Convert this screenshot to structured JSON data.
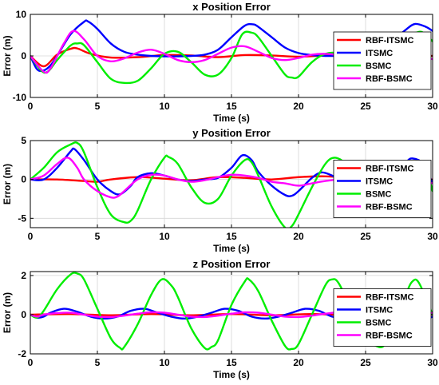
{
  "figure": {
    "background": "#ffffff",
    "grid": true,
    "legend_position": "right",
    "series_colors": {
      "RBF-ITSMC": "#ff0000",
      "ITSMC": "#0000ff",
      "BSMC": "#00ee00",
      "RBF-BSMC": "#ff00ff"
    }
  },
  "chart_data": [
    {
      "type": "line",
      "title": "x Position Error",
      "xlabel": "Time (s)",
      "ylabel": "Error (m)",
      "xlim": [
        0,
        30
      ],
      "ylim": [
        -10,
        10
      ],
      "xticks": [
        0,
        5,
        10,
        15,
        20,
        25,
        30
      ],
      "yticks": [
        -10,
        0,
        10
      ],
      "grid": true,
      "legend": {
        "position": "right"
      },
      "series": [
        {
          "name": "RBF-ITSMC",
          "color": "#ff0000",
          "x": [
            0,
            1,
            2,
            3,
            3.5,
            4.5,
            6,
            8,
            10,
            12,
            14,
            16,
            18,
            20,
            22,
            24,
            26,
            28,
            30
          ],
          "y": [
            0,
            -2.5,
            0.3,
            1.7,
            1.8,
            0.5,
            -0.4,
            -0.3,
            0.2,
            0.1,
            -0.3,
            0.2,
            0.1,
            -0.2,
            0.1,
            0.1,
            -0.1,
            0.1,
            0
          ]
        },
        {
          "name": "ITSMC",
          "color": "#0000ff",
          "x": [
            0,
            0.5,
            1,
            1.5,
            2,
            3,
            4,
            4.3,
            5,
            6,
            7,
            8,
            9,
            10,
            11,
            12,
            13,
            14,
            15,
            16,
            16.6,
            17,
            18,
            19,
            20,
            21,
            22,
            23,
            24,
            25,
            26,
            27,
            28,
            28.7,
            29.5,
            30
          ],
          "y": [
            0,
            -3.2,
            -3.5,
            -2.3,
            0,
            5.2,
            8.2,
            8.3,
            6.5,
            3.0,
            1.0,
            0.3,
            0,
            -0.1,
            -0.1,
            0,
            0.3,
            1.5,
            4.5,
            7.3,
            7.6,
            7.0,
            4.5,
            2.0,
            0.7,
            0.2,
            0,
            0,
            0,
            0.2,
            1.2,
            3.5,
            6.3,
            7.7,
            7.0,
            6.0
          ]
        },
        {
          "name": "BSMC",
          "color": "#00ee00",
          "x": [
            0,
            0.8,
            1.3,
            2,
            3,
            3.5,
            4,
            5,
            6,
            7,
            8,
            9,
            10,
            11,
            12,
            13,
            14,
            15,
            15.8,
            16.5,
            17,
            18,
            19,
            19.5,
            20,
            21,
            22,
            23,
            24,
            25,
            26,
            27,
            28,
            29,
            29.5,
            30
          ],
          "y": [
            0,
            -3.5,
            -3.8,
            -1.0,
            2.5,
            3.0,
            2.6,
            -1.5,
            -5.5,
            -6.5,
            -6.0,
            -3.0,
            0.5,
            1.0,
            -1.5,
            -4.5,
            -4.5,
            -0.5,
            5.2,
            5.6,
            4.5,
            0,
            -4.5,
            -5.2,
            -5.0,
            -1.5,
            0.5,
            0.5,
            -2.0,
            -5.0,
            -4.5,
            -1.0,
            4.0,
            5.8,
            5.0,
            3.5
          ]
        },
        {
          "name": "RBF-BSMC",
          "color": "#ff00ff",
          "x": [
            0,
            1,
            1.5,
            2.5,
            3.2,
            4,
            5,
            6,
            7,
            8,
            9,
            10,
            11,
            12,
            13,
            14,
            15,
            16,
            17,
            18,
            19,
            20,
            21,
            22,
            23,
            24,
            25,
            26,
            27,
            28,
            29,
            30
          ],
          "y": [
            0,
            -3.8,
            -3.0,
            3.0,
            6.0,
            4.0,
            0,
            -1.3,
            -0.6,
            0.8,
            1.5,
            0.5,
            -1.0,
            -1.5,
            -1.0,
            0.5,
            2.0,
            2.3,
            1.0,
            -0.5,
            -1.0,
            -0.5,
            0.3,
            0.5,
            0.2,
            -0.3,
            -0.3,
            -0.1,
            0.3,
            0.3,
            0,
            -0.8
          ]
        }
      ]
    },
    {
      "type": "line",
      "title": "y Position Error",
      "xlabel": "Time (s)",
      "ylabel": "Error (m)",
      "xlim": [
        0,
        30
      ],
      "ylim": [
        -6.2,
        5
      ],
      "xticks": [
        0,
        5,
        10,
        15,
        20,
        25,
        30
      ],
      "yticks": [
        -5,
        0,
        5
      ],
      "grid": true,
      "legend": {
        "position": "right"
      },
      "series": [
        {
          "name": "RBF-ITSMC",
          "color": "#ff0000",
          "x": [
            0,
            2,
            4,
            5,
            6,
            8,
            10,
            12,
            14,
            16,
            18,
            20,
            22,
            24,
            26,
            28,
            30
          ],
          "y": [
            0,
            0,
            -0.2,
            -0.3,
            0,
            0.3,
            0.1,
            -0.1,
            0.3,
            0.2,
            0,
            0.3,
            0.4,
            0.2,
            0,
            0.1,
            0
          ]
        },
        {
          "name": "ITSMC",
          "color": "#0000ff",
          "x": [
            0,
            1,
            2,
            3,
            3.3,
            4,
            5,
            6,
            6.7,
            7.5,
            8,
            9,
            10,
            11,
            12,
            13,
            14,
            15,
            15.8,
            16.5,
            17,
            18,
            19,
            19.5,
            20,
            21,
            21.7,
            22.5,
            23,
            24,
            25,
            26,
            27,
            28,
            28.5,
            29.3,
            30
          ],
          "y": [
            0,
            0,
            1.5,
            3.6,
            3.9,
            2.5,
            0,
            -1.5,
            -1.9,
            -0.8,
            0.3,
            0.8,
            0.5,
            0,
            -0.2,
            0,
            0.2,
            1.5,
            3.1,
            2.5,
            1.0,
            -0.8,
            -2.0,
            -2.1,
            -1.5,
            0.2,
            0.9,
            0.5,
            0,
            -0.2,
            -0.1,
            0,
            0.5,
            2.2,
            2.7,
            2.0,
            -0.5
          ]
        },
        {
          "name": "BSMC",
          "color": "#00ee00",
          "x": [
            0,
            1,
            2,
            3,
            3.5,
            4,
            5,
            6,
            7,
            7.5,
            8,
            9,
            10,
            10.3,
            11,
            12,
            13,
            14,
            15,
            16,
            16.5,
            17,
            18,
            19,
            19.5,
            20,
            21,
            22,
            22.7,
            23.5,
            24,
            25,
            26,
            27,
            28,
            28.5,
            29.5,
            30
          ],
          "y": [
            0,
            1.5,
            3.5,
            4.5,
            4.7,
            3.5,
            -1.0,
            -4.5,
            -5.5,
            -5.3,
            -4.0,
            0,
            2.8,
            2.9,
            2.0,
            -1.0,
            -3.0,
            -2.5,
            0.5,
            2.5,
            2.2,
            0.5,
            -3.5,
            -6.2,
            -6.0,
            -4.5,
            -1.0,
            2.0,
            2.8,
            2.0,
            0,
            -1.5,
            -1.0,
            0,
            1.5,
            2.2,
            1.0,
            -1.5
          ]
        },
        {
          "name": "RBF-BSMC",
          "color": "#ff00ff",
          "x": [
            0,
            1,
            2,
            2.8,
            3.5,
            4,
            5,
            6,
            6.5,
            7,
            8,
            9,
            10,
            11,
            12,
            13,
            14,
            15,
            16,
            17,
            18,
            19,
            20,
            21,
            22,
            23,
            24,
            25,
            26,
            27,
            28,
            29,
            30
          ],
          "y": [
            0,
            0.5,
            2.0,
            2.8,
            1.5,
            0,
            -1.5,
            -2.3,
            -2.2,
            -1.5,
            0,
            0.6,
            0.5,
            0,
            -0.3,
            -0.1,
            0.3,
            0.6,
            0.5,
            0.2,
            -0.3,
            -0.5,
            -0.8,
            -0.5,
            -0.2,
            0,
            0,
            -0.2,
            -0.1,
            0.2,
            0.3,
            0.1,
            -0.5
          ]
        }
      ]
    },
    {
      "type": "line",
      "title": "z Position Error",
      "xlabel": "Time (s)",
      "ylabel": "Error (m)",
      "xlim": [
        0,
        30
      ],
      "ylim": [
        -2,
        2.2
      ],
      "xticks": [
        0,
        5,
        10,
        15,
        20,
        25,
        30
      ],
      "yticks": [
        -2,
        0,
        2
      ],
      "grid": true,
      "legend": {
        "position": "right"
      },
      "series": [
        {
          "name": "RBF-ITSMC",
          "color": "#ff0000",
          "x": [
            0,
            3,
            6,
            9,
            12,
            15,
            18,
            21,
            24,
            27,
            30
          ],
          "y": [
            0,
            0.03,
            -0.03,
            0.03,
            -0.03,
            0.03,
            -0.03,
            0.03,
            -0.03,
            0.03,
            0
          ]
        },
        {
          "name": "ITSMC",
          "color": "#0000ff",
          "x": [
            0,
            0.5,
            1,
            1.5,
            2.5,
            3.5,
            4.5,
            5.5,
            6.5,
            7.5,
            8.5,
            9.5,
            10.5,
            11.5,
            12.5,
            13.5,
            14.5,
            15.5,
            16.5,
            17.5,
            18.5,
            19.5,
            20.5,
            21.5,
            22.5,
            23.5,
            24.5,
            25.5,
            26.5,
            27.5,
            28.5,
            29.5,
            30
          ],
          "y": [
            0,
            -0.15,
            -0.1,
            0.1,
            0.3,
            0.15,
            -0.1,
            -0.2,
            -0.1,
            0.2,
            0.3,
            0.1,
            -0.1,
            -0.2,
            -0.1,
            0.1,
            0.3,
            0.2,
            -0.1,
            -0.2,
            -0.1,
            0.1,
            0.3,
            0.2,
            -0.1,
            -0.2,
            -0.1,
            0.1,
            0.3,
            0.2,
            0,
            -0.2,
            -0.1
          ]
        },
        {
          "name": "BSMC",
          "color": "#00ee00",
          "x": [
            0,
            0.5,
            1,
            2,
            3,
            3.5,
            4,
            5,
            6,
            6.7,
            7,
            8,
            9,
            9.8,
            10.5,
            11,
            12,
            13,
            13.5,
            14,
            15,
            16,
            16.3,
            17,
            18,
            19,
            19.5,
            20,
            21,
            22,
            22.5,
            23,
            24,
            25,
            26,
            26.5,
            27,
            28,
            28.5,
            29,
            30
          ],
          "y": [
            0,
            -0.15,
            0.2,
            1.3,
            2.05,
            2.1,
            1.8,
            0.3,
            -1.2,
            -1.7,
            -1.65,
            -0.5,
            1.0,
            1.8,
            1.5,
            0.9,
            -0.7,
            -1.7,
            -1.65,
            -1.3,
            0.5,
            1.7,
            1.8,
            1.2,
            -0.3,
            -1.6,
            -1.75,
            -1.5,
            0,
            1.5,
            1.8,
            1.6,
            0.2,
            -1.2,
            -1.65,
            -1.5,
            -1.0,
            1.0,
            1.7,
            1.6,
            0
          ]
        },
        {
          "name": "RBF-BSMC",
          "color": "#ff00ff",
          "x": [
            0,
            0.5,
            1,
            2,
            3,
            4,
            5,
            6,
            7,
            8,
            9,
            10,
            11,
            12,
            13,
            14,
            15,
            16,
            17,
            18,
            19,
            20,
            21,
            22,
            23,
            24,
            25,
            26,
            27,
            28,
            29,
            30
          ],
          "y": [
            0,
            -0.1,
            0,
            0.08,
            0.1,
            0,
            -0.1,
            -0.12,
            -0.05,
            0.05,
            0.12,
            0.1,
            0,
            -0.1,
            -0.12,
            -0.05,
            0.05,
            0.12,
            0.1,
            0,
            -0.1,
            -0.12,
            -0.05,
            0.05,
            0.12,
            0.1,
            0,
            -0.1,
            -0.12,
            -0.05,
            0.05,
            0.1
          ]
        }
      ]
    }
  ]
}
